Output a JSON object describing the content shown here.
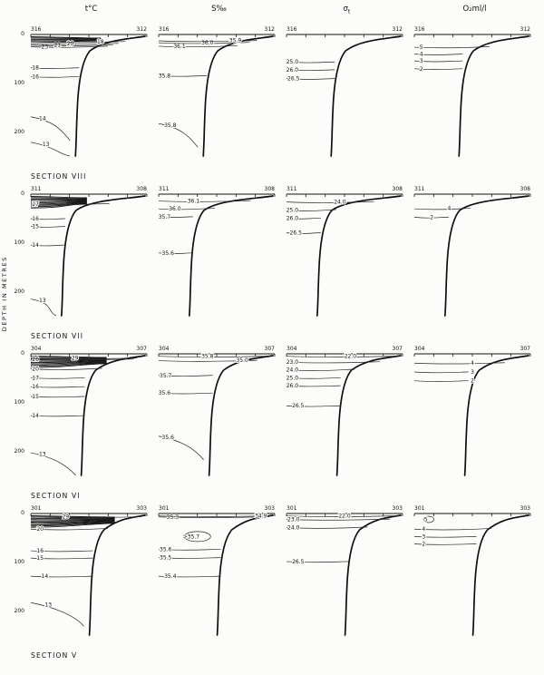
{
  "figure": {
    "columns": [
      {
        "main": "t°C",
        "sub": "",
        "suffix": ""
      },
      {
        "main": "S‰",
        "sub": "",
        "suffix": ""
      },
      {
        "main": "σ",
        "sub": "t",
        "suffix": ""
      },
      {
        "main": "O₂",
        "sub": "",
        "suffix": "ml/l"
      }
    ],
    "depth_axis": {
      "label": "DEPTH IN METRES",
      "ticks": [
        "0",
        "100",
        "200"
      ]
    },
    "sections": [
      "SECTION VIII",
      "SECTION VII",
      "SECTION VI",
      "SECTION V"
    ]
  },
  "chart_data": [
    {
      "type": "contour_section",
      "section": "VIII",
      "variable": "t°C",
      "station_left": "316",
      "station_right": "312",
      "depth_range_m": [
        0,
        245
      ],
      "annotations": [
        {
          "label": "23",
          "x": 0.12,
          "depth": 25
        },
        {
          "label": "21",
          "x": 0.23,
          "depth": 22
        },
        {
          "label": "20",
          "x": 0.34,
          "depth": 19
        },
        {
          "label": "18",
          "x": 0.6,
          "depth": 15
        },
        {
          "label": "18",
          "x": 0.04,
          "depth": 68
        },
        {
          "label": "16",
          "x": 0.04,
          "depth": 86
        },
        {
          "label": "14",
          "x": 0.1,
          "depth": 168
        },
        {
          "label": "13",
          "x": 0.13,
          "depth": 220
        }
      ]
    },
    {
      "type": "contour_section",
      "section": "VIII",
      "variable": "S‰",
      "station_left": "316",
      "station_right": "312",
      "depth_range_m": [
        0,
        245
      ],
      "annotations": [
        {
          "label": "36.1",
          "x": 0.18,
          "depth": 24
        },
        {
          "label": "36.0",
          "x": 0.42,
          "depth": 17
        },
        {
          "label": "35.9",
          "x": 0.66,
          "depth": 13
        },
        {
          "label": "35.8",
          "x": 0.05,
          "depth": 84
        },
        {
          "label": "35.8",
          "x": 0.1,
          "depth": 182
        }
      ]
    },
    {
      "type": "contour_section",
      "section": "VIII",
      "variable": "σt",
      "station_left": "316",
      "station_right": "312",
      "depth_range_m": [
        0,
        245
      ],
      "annotations": [
        {
          "label": "25.0",
          "x": 0.05,
          "depth": 56
        },
        {
          "label": "26.0",
          "x": 0.05,
          "depth": 72
        },
        {
          "label": "26.5",
          "x": 0.06,
          "depth": 90
        }
      ]
    },
    {
      "type": "contour_section",
      "section": "VIII",
      "variable": "O₂ ml/l",
      "station_left": "316",
      "station_right": "312",
      "depth_range_m": [
        0,
        245
      ],
      "annotations": [
        {
          "label": "5",
          "x": 0.06,
          "depth": 26
        },
        {
          "label": "4",
          "x": 0.06,
          "depth": 40
        },
        {
          "label": "3",
          "x": 0.06,
          "depth": 54
        },
        {
          "label": "2",
          "x": 0.06,
          "depth": 70
        }
      ]
    },
    {
      "type": "contour_section",
      "section": "VII",
      "variable": "t°C",
      "station_left": "311",
      "station_right": "308",
      "depth_range_m": [
        0,
        245
      ],
      "annotations": [
        {
          "label": "27",
          "x": 0.04,
          "depth": 20
        },
        {
          "label": "16",
          "x": 0.04,
          "depth": 50
        },
        {
          "label": "15",
          "x": 0.04,
          "depth": 66
        },
        {
          "label": "14",
          "x": 0.04,
          "depth": 104
        },
        {
          "label": "13",
          "x": 0.1,
          "depth": 214
        }
      ]
    },
    {
      "type": "contour_section",
      "section": "VII",
      "variable": "S‰",
      "station_left": "311",
      "station_right": "308",
      "depth_range_m": [
        0,
        245
      ],
      "annotations": [
        {
          "label": "36.1",
          "x": 0.3,
          "depth": 14
        },
        {
          "label": "36.0",
          "x": 0.14,
          "depth": 30
        },
        {
          "label": "35.7",
          "x": 0.05,
          "depth": 46
        },
        {
          "label": "35.6",
          "x": 0.08,
          "depth": 120
        }
      ]
    },
    {
      "type": "contour_section",
      "section": "VII",
      "variable": "σt",
      "station_left": "311",
      "station_right": "308",
      "depth_range_m": [
        0,
        245
      ],
      "annotations": [
        {
          "label": "24.0",
          "x": 0.46,
          "depth": 16
        },
        {
          "label": "25.0",
          "x": 0.05,
          "depth": 33
        },
        {
          "label": "26.0",
          "x": 0.05,
          "depth": 49
        },
        {
          "label": "26.5",
          "x": 0.08,
          "depth": 79
        }
      ]
    },
    {
      "type": "contour_section",
      "section": "VII",
      "variable": "O₂ ml/l",
      "station_left": "311",
      "station_right": "308",
      "depth_range_m": [
        0,
        245
      ],
      "annotations": [
        {
          "label": "4",
          "x": 0.3,
          "depth": 30
        },
        {
          "label": "2",
          "x": 0.15,
          "depth": 47
        }
      ]
    },
    {
      "type": "contour_section",
      "section": "VI",
      "variable": "t°C",
      "station_left": "304",
      "station_right": "307",
      "depth_range_m": [
        0,
        245
      ],
      "annotations": [
        {
          "label": "26",
          "x": 0.04,
          "depth": 11
        },
        {
          "label": "29",
          "x": 0.38,
          "depth": 9
        },
        {
          "label": "20",
          "x": 0.04,
          "depth": 31
        },
        {
          "label": "17",
          "x": 0.04,
          "depth": 49
        },
        {
          "label": "16",
          "x": 0.04,
          "depth": 67
        },
        {
          "label": "15",
          "x": 0.04,
          "depth": 87
        },
        {
          "label": "14",
          "x": 0.04,
          "depth": 126
        },
        {
          "label": "13",
          "x": 0.1,
          "depth": 202
        }
      ]
    },
    {
      "type": "contour_section",
      "section": "VI",
      "variable": "S‰",
      "station_left": "304",
      "station_right": "307",
      "depth_range_m": [
        0,
        245
      ],
      "annotations": [
        {
          "label": "35.8",
          "x": 0.42,
          "depth": 5
        },
        {
          "label": "35.0",
          "x": 0.72,
          "depth": 14
        },
        {
          "label": "35.7",
          "x": 0.06,
          "depth": 44
        },
        {
          "label": "35.6",
          "x": 0.05,
          "depth": 80
        },
        {
          "label": "35.6",
          "x": 0.08,
          "depth": 168
        }
      ]
    },
    {
      "type": "contour_section",
      "section": "VI",
      "variable": "σt",
      "station_left": "304",
      "station_right": "307",
      "depth_range_m": [
        0,
        245
      ],
      "annotations": [
        {
          "label": "22.0",
          "x": 0.55,
          "depth": 5
        },
        {
          "label": "23.0",
          "x": 0.05,
          "depth": 17
        },
        {
          "label": "24.0",
          "x": 0.05,
          "depth": 33
        },
        {
          "label": "25.0",
          "x": 0.05,
          "depth": 49
        },
        {
          "label": "26.0",
          "x": 0.05,
          "depth": 65
        },
        {
          "label": "26.5",
          "x": 0.1,
          "depth": 106
        }
      ]
    },
    {
      "type": "contour_section",
      "section": "VI",
      "variable": "O₂ ml/l",
      "station_left": "304",
      "station_right": "307",
      "depth_range_m": [
        0,
        245
      ],
      "annotations": [
        {
          "label": "4",
          "x": 0.5,
          "depth": 19
        },
        {
          "label": "3",
          "x": 0.5,
          "depth": 37
        },
        {
          "label": "2",
          "x": 0.5,
          "depth": 55
        }
      ]
    },
    {
      "type": "contour_section",
      "section": "V",
      "variable": "t°C",
      "station_left": "301",
      "station_right": "303",
      "depth_range_m": [
        0,
        245
      ],
      "annotations": [
        {
          "label": "29",
          "x": 0.3,
          "depth": 7
        },
        {
          "label": "20",
          "x": 0.08,
          "depth": 32
        },
        {
          "label": "16",
          "x": 0.08,
          "depth": 76
        },
        {
          "label": "15",
          "x": 0.08,
          "depth": 91
        },
        {
          "label": "14",
          "x": 0.12,
          "depth": 128
        },
        {
          "label": "13",
          "x": 0.15,
          "depth": 182
        }
      ]
    },
    {
      "type": "contour_section",
      "section": "V",
      "variable": "S‰",
      "station_left": "301",
      "station_right": "303",
      "depth_range_m": [
        0,
        245
      ],
      "annotations": [
        {
          "label": "35.3",
          "x": 0.12,
          "depth": 7
        },
        {
          "label": "34.9",
          "x": 0.88,
          "depth": 5
        },
        {
          "label": ">35.7",
          "x": 0.28,
          "depth": 47,
          "closed": true
        },
        {
          "label": "35.6",
          "x": 0.06,
          "depth": 73
        },
        {
          "label": "35.5",
          "x": 0.06,
          "depth": 90
        },
        {
          "label": "35.4",
          "x": 0.1,
          "depth": 128
        }
      ]
    },
    {
      "type": "contour_section",
      "section": "V",
      "variable": "σt",
      "station_left": "301",
      "station_right": "303",
      "depth_range_m": [
        0,
        245
      ],
      "annotations": [
        {
          "label": "22.0",
          "x": 0.5,
          "depth": 5
        },
        {
          "label": "23.0",
          "x": 0.06,
          "depth": 12
        },
        {
          "label": "24.0",
          "x": 0.06,
          "depth": 29
        },
        {
          "label": "26.5",
          "x": 0.1,
          "depth": 98
        }
      ]
    },
    {
      "type": "contour_section",
      "section": "V",
      "variable": "O₂ ml/l",
      "station_left": "301",
      "station_right": "303",
      "depth_range_m": [
        0,
        245
      ],
      "annotations": [
        {
          "label": "5",
          "x": 0.1,
          "depth": 12,
          "closed": true
        },
        {
          "label": "4",
          "x": 0.08,
          "depth": 32
        },
        {
          "label": "3",
          "x": 0.08,
          "depth": 47
        },
        {
          "label": "2",
          "x": 0.08,
          "depth": 62
        }
      ]
    }
  ]
}
